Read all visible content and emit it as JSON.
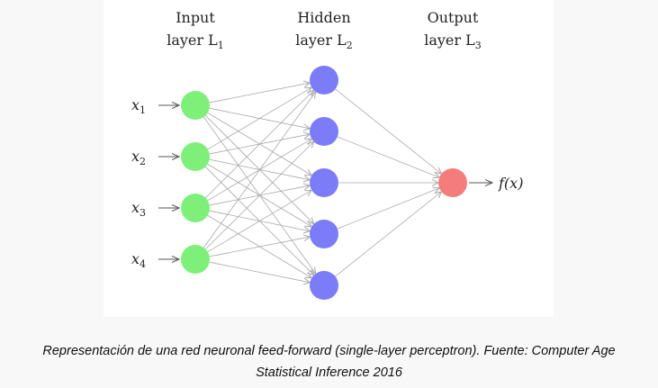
{
  "layers": [
    {
      "title_line1": "Input",
      "title_line2": "layer L",
      "subscript": "1",
      "color": "#7ef07a",
      "node_count": 4
    },
    {
      "title_line1": "Hidden",
      "title_line2": "layer L",
      "subscript": "2",
      "color": "#7c7cf8",
      "node_count": 5
    },
    {
      "title_line1": "Output",
      "title_line2": "layer L",
      "subscript": "3",
      "color": "#f47c7c",
      "node_count": 1
    }
  ],
  "inputs": [
    {
      "var": "x",
      "sub": "1"
    },
    {
      "var": "x",
      "sub": "2"
    },
    {
      "var": "x",
      "sub": "3"
    },
    {
      "var": "x",
      "sub": "4"
    }
  ],
  "output_label": "f(x)",
  "colors": {
    "edge": "#aaaaaa",
    "arrow": "#555555",
    "background": "#ffffff"
  },
  "caption": {
    "line1": "Representación de una red neuronal feed-forward (single-layer perceptron). Fuente: Computer Age",
    "line2": "Statistical Inference 2016"
  }
}
